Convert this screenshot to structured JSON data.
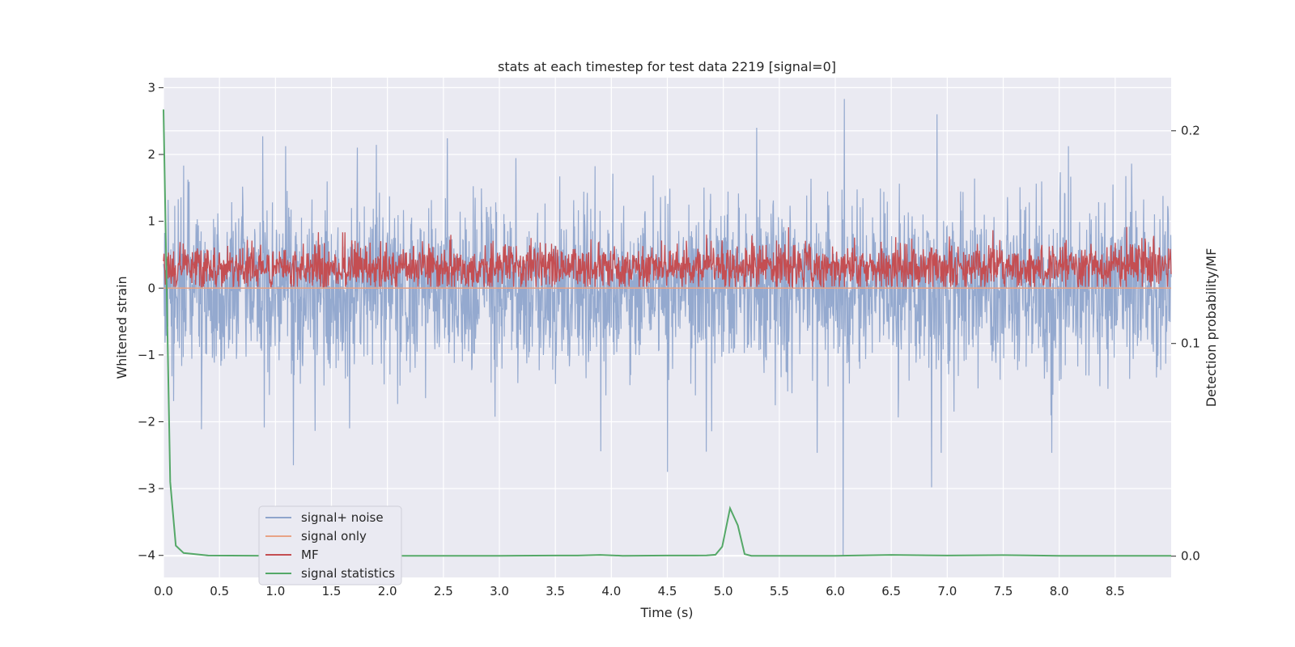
{
  "chart_data": {
    "type": "line",
    "title": "stats at each timestep for test data 2219 [signal=0]",
    "xlabel": "Time (s)",
    "ylabel": "Whitened strain",
    "y2label": "Detection probability/MF",
    "xlim": [
      0,
      9
    ],
    "ylim": [
      -4.33,
      3.15
    ],
    "y2lim": [
      -0.01,
      0.225
    ],
    "x_ticks": [
      0.0,
      0.5,
      1.0,
      1.5,
      2.0,
      2.5,
      3.0,
      3.5,
      4.0,
      4.5,
      5.0,
      5.5,
      6.0,
      6.5,
      7.0,
      7.5,
      8.0,
      8.5
    ],
    "x_tick_labels": [
      "0.0",
      "0.5",
      "1.0",
      "1.5",
      "2.0",
      "2.5",
      "3.0",
      "3.5",
      "4.0",
      "4.5",
      "5.0",
      "5.5",
      "6.0",
      "6.5",
      "7.0",
      "7.5",
      "8.0",
      "8.5"
    ],
    "y_ticks": [
      3,
      2,
      1,
      0,
      -1,
      -2,
      -3,
      -4
    ],
    "y_tick_labels": [
      "3",
      "2",
      "1",
      "0",
      "−1",
      "−2",
      "−3",
      "−4"
    ],
    "y2_ticks": [
      0.2,
      0.1,
      0.0
    ],
    "y2_tick_labels": [
      "0.2",
      "0.1",
      "0.0"
    ],
    "grid": true,
    "legend_position": "lower-left",
    "series": [
      {
        "name": "signal+ noise",
        "color": "#8fa5cc",
        "axis": "left",
        "envelope": {
          "typical_min": -1.7,
          "typical_max": 1.6,
          "peak_max": 2.83,
          "peak_min": -4.0
        },
        "notable_points": [
          {
            "x": 6.08,
            "y": 2.83
          },
          {
            "x": 6.07,
            "y": -4.0
          },
          {
            "x": 6.86,
            "y": -2.98
          },
          {
            "x": 6.91,
            "y": 2.6
          },
          {
            "x": 1.16,
            "y": -2.65
          },
          {
            "x": 4.5,
            "y": -2.75
          }
        ]
      },
      {
        "name": "signal only",
        "color": "#e8a386",
        "axis": "left",
        "x": [
          0,
          9
        ],
        "y": [
          0,
          0
        ]
      },
      {
        "name": "MF",
        "color": "#c44e52",
        "axis": "left",
        "envelope": {
          "typical_min": 0.0,
          "typical_max": 0.6,
          "peak_max": 1.0
        }
      },
      {
        "name": "signal statistics",
        "color": "#55a868",
        "axis": "right",
        "x": [
          0.0,
          0.03,
          0.06,
          0.11,
          0.18,
          0.4,
          1.0,
          2.0,
          3.0,
          3.5,
          3.7,
          3.9,
          4.1,
          4.5,
          4.75,
          4.85,
          4.93,
          4.99,
          5.06,
          5.13,
          5.19,
          5.25,
          5.6,
          6.0,
          6.5,
          7.0,
          7.5,
          8.0,
          8.5,
          9.0
        ],
        "y": [
          0.21,
          0.12,
          0.035,
          0.005,
          0.0015,
          0.0003,
          0.0002,
          0.0002,
          0.0002,
          0.0003,
          0.0003,
          0.0006,
          0.0002,
          0.0003,
          0.0003,
          0.0004,
          0.0007,
          0.0045,
          0.0225,
          0.0145,
          0.001,
          0.0002,
          0.0002,
          0.0002,
          0.0006,
          0.0003,
          0.0005,
          0.0002,
          0.0002,
          0.0002
        ]
      }
    ]
  }
}
